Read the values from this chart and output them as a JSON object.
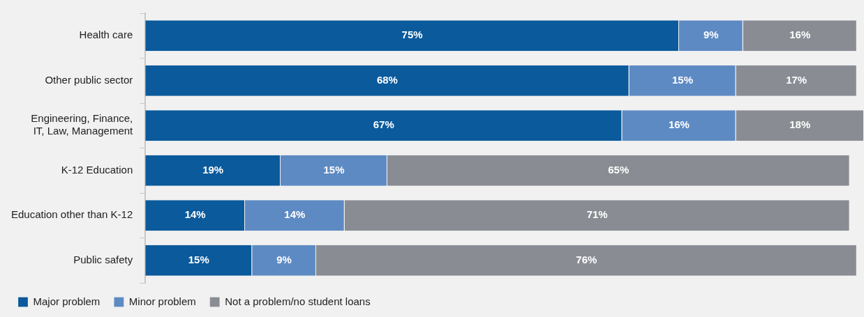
{
  "chart_data": {
    "type": "bar",
    "orientation": "horizontal",
    "stacked": true,
    "legend": "bottom left",
    "categories": [
      "Health care",
      "Other public sector",
      "Engineering, Finance,\nIT, Law, Management",
      "K-12 Education",
      "Education other than K-12",
      "Public safety"
    ],
    "series": [
      {
        "name": "Major problem",
        "color": "#0a5a9c",
        "values": [
          75,
          68,
          67,
          19,
          14,
          15
        ],
        "value_labels": [
          "75%",
          "68%",
          "67%",
          "19%",
          "14%",
          "15%"
        ]
      },
      {
        "name": "Minor problem",
        "color": "#5d8ac3",
        "values": [
          9,
          15,
          16,
          15,
          14,
          9
        ],
        "value_labels": [
          "9%",
          "15%",
          "16%",
          "15%",
          "14%",
          "9%"
        ]
      },
      {
        "name": "Not a problem/no student loans",
        "color": "#898c93",
        "values": [
          16,
          17,
          18,
          65,
          71,
          76
        ],
        "value_labels": [
          "16%",
          "17%",
          "18%",
          "65%",
          "71%",
          "76%"
        ]
      }
    ]
  }
}
